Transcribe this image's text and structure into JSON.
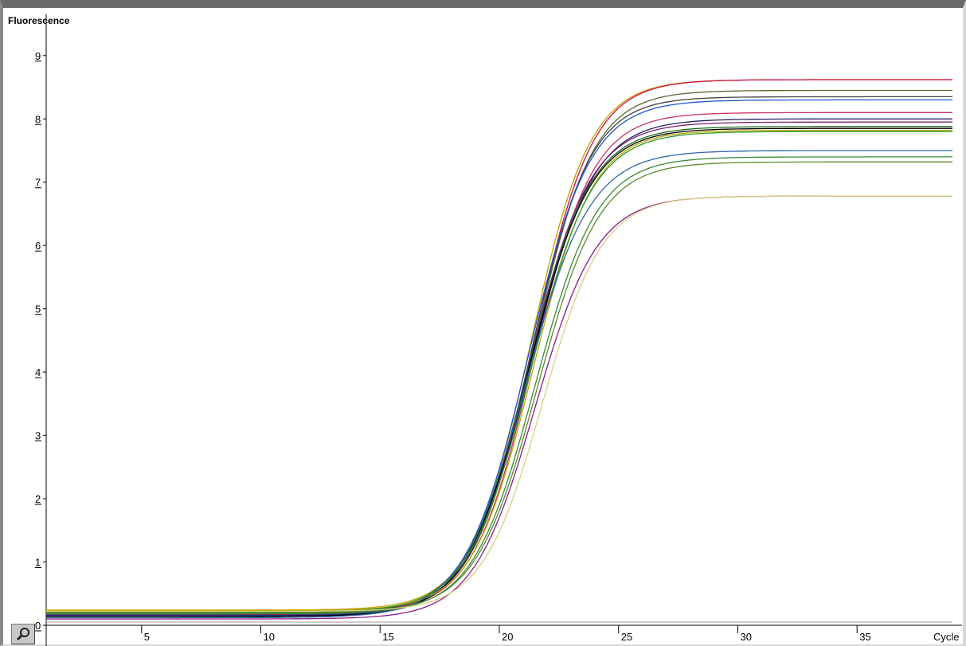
{
  "chart_data": {
    "type": "line",
    "ylabel": "Fluorescence",
    "xlabel": "Cycle",
    "xlim": [
      1,
      39
    ],
    "ylim": [
      0,
      9.4
    ],
    "xticks": [
      5,
      10,
      15,
      20,
      25,
      30,
      35
    ],
    "yticks": [
      0,
      1,
      2,
      3,
      4,
      5,
      6,
      7,
      8,
      9
    ],
    "grid": false,
    "legend": "none",
    "series": [
      {
        "color": "#c8a000",
        "baseline": 0.24,
        "plateau": 8.62,
        "midpoint": 21.3,
        "slope": 1.25
      },
      {
        "color": "#cc1144",
        "baseline": 0.2,
        "plateau": 8.62,
        "midpoint": 21.4,
        "slope": 1.25
      },
      {
        "color": "#556b2f",
        "baseline": 0.22,
        "plateau": 8.45,
        "midpoint": 21.4,
        "slope": 1.25
      },
      {
        "color": "#404040",
        "baseline": 0.18,
        "plateau": 8.35,
        "midpoint": 21.3,
        "slope": 1.25
      },
      {
        "color": "#2255cc",
        "baseline": 0.16,
        "plateau": 8.3,
        "midpoint": 21.2,
        "slope": 1.3
      },
      {
        "color": "#cc3366",
        "baseline": 0.2,
        "plateau": 8.1,
        "midpoint": 21.4,
        "slope": 1.25
      },
      {
        "color": "#222266",
        "baseline": 0.15,
        "plateau": 8.0,
        "midpoint": 21.3,
        "slope": 1.3
      },
      {
        "color": "#7a1f6e",
        "baseline": 0.17,
        "plateau": 7.95,
        "midpoint": 21.2,
        "slope": 1.3
      },
      {
        "color": "#226622",
        "baseline": 0.19,
        "plateau": 7.88,
        "midpoint": 21.2,
        "slope": 1.3
      },
      {
        "color": "#000000",
        "baseline": 0.14,
        "plateau": 7.85,
        "midpoint": 21.2,
        "slope": 1.3
      },
      {
        "color": "#bfa600",
        "baseline": 0.23,
        "plateau": 7.82,
        "midpoint": 21.4,
        "slope": 1.25
      },
      {
        "color": "#2a9a2a",
        "baseline": 0.21,
        "plateau": 7.8,
        "midpoint": 21.3,
        "slope": 1.3
      },
      {
        "color": "#2f66aa",
        "baseline": 0.12,
        "plateau": 7.5,
        "midpoint": 21.1,
        "slope": 1.35
      },
      {
        "color": "#3a8a3a",
        "baseline": 0.18,
        "plateau": 7.4,
        "midpoint": 21.5,
        "slope": 1.3
      },
      {
        "color": "#5a8a2a",
        "baseline": 0.2,
        "plateau": 7.32,
        "midpoint": 21.6,
        "slope": 1.3
      },
      {
        "color": "#8b1a8b",
        "baseline": 0.1,
        "plateau": 6.78,
        "midpoint": 21.5,
        "slope": 1.3
      },
      {
        "color": "#d8d080",
        "baseline": 0.22,
        "plateau": 6.78,
        "midpoint": 21.8,
        "slope": 1.25
      }
    ]
  },
  "controls": {
    "zoom_icon": "magnifier-icon"
  }
}
